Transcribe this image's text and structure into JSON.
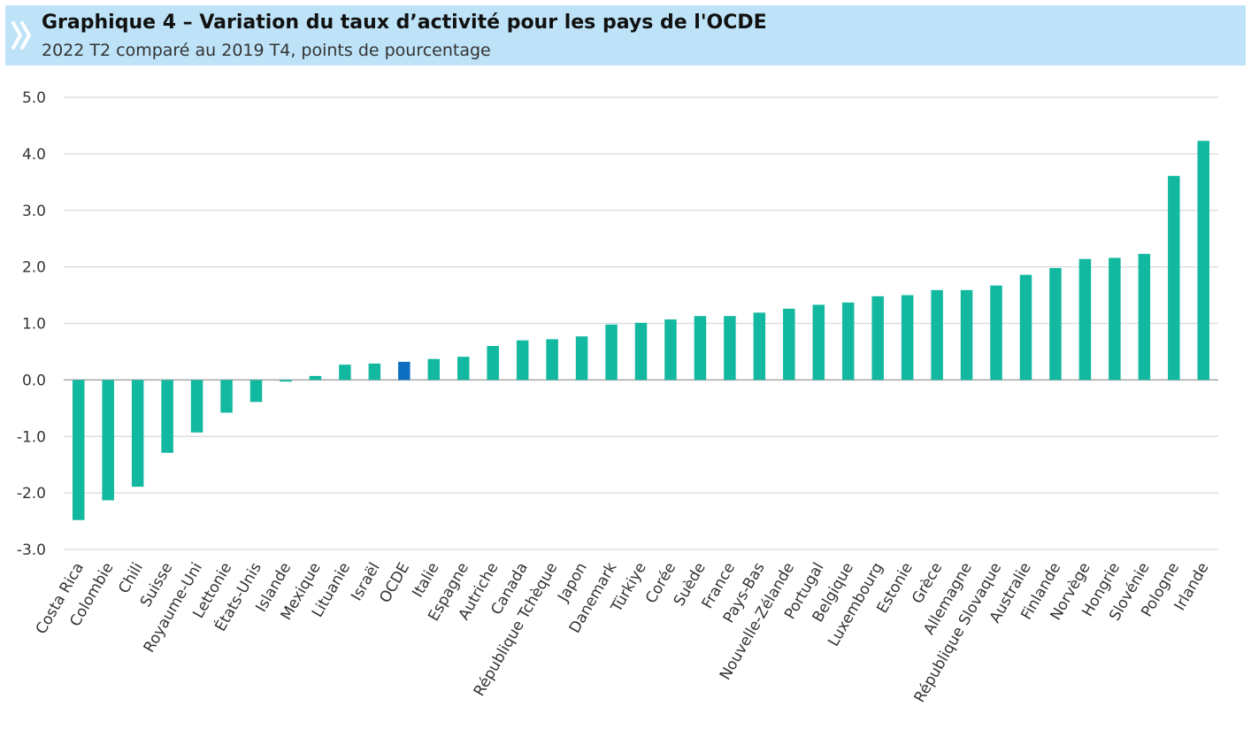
{
  "header": {
    "title": "Graphique 4 – Variation du taux d’activité pour les pays de l'OCDE",
    "subtitle": "2022 T2 comparé au 2019 T4, points de pourcentage",
    "logo_icon": "double-chevron-right-icon"
  },
  "colors": {
    "bar": "#12b9a0",
    "highlight": "#0e6fc0",
    "header_bg": "#bee3f8",
    "grid": "#d9d9d9"
  },
  "chart_data": {
    "type": "bar",
    "title": "Graphique 4 – Variation du taux d’activité pour les pays de l'OCDE",
    "subtitle": "2022 T2 comparé au 2019 T4, points de pourcentage",
    "xlabel": "",
    "ylabel": "",
    "ylim": [
      -3.0,
      5.0
    ],
    "yticks": [
      "5.0",
      "4.0",
      "3.0",
      "2.0",
      "1.0",
      "0.0",
      "-1.0",
      "-2.0",
      "-3.0"
    ],
    "grid": true,
    "highlight_category": "OCDE",
    "categories": [
      "Costa Rica",
      "Colombie",
      "Chili",
      "Suisse",
      "Royaume-Uni",
      "Lettonie",
      "États-Unis",
      "Islande",
      "Mexique",
      "Lituanie",
      "Israël",
      "OCDE",
      "Italie",
      "Espagne",
      "Autriche",
      "Canada",
      "République Tchèque",
      "Japon",
      "Danemark",
      "Türkiye",
      "Corée",
      "Suède",
      "France",
      "Pays-Bas",
      "Nouvelle-Zélande",
      "Portugal",
      "Belgique",
      "Luxembourg",
      "Estonie",
      "Grèce",
      "Allemagne",
      "République Slovaque",
      "Australie",
      "Finlande",
      "Norvège",
      "Hongrie",
      "Slovénie",
      "Pologne",
      "Irlande"
    ],
    "values": [
      -2.48,
      -2.13,
      -1.89,
      -1.29,
      -0.93,
      -0.58,
      -0.39,
      -0.03,
      0.07,
      0.27,
      0.29,
      0.32,
      0.37,
      0.41,
      0.6,
      0.7,
      0.72,
      0.77,
      0.98,
      1.01,
      1.07,
      1.13,
      1.13,
      1.19,
      1.26,
      1.33,
      1.37,
      1.48,
      1.5,
      1.59,
      1.59,
      1.67,
      1.86,
      1.98,
      2.14,
      2.16,
      2.23,
      3.61,
      4.23
    ]
  }
}
